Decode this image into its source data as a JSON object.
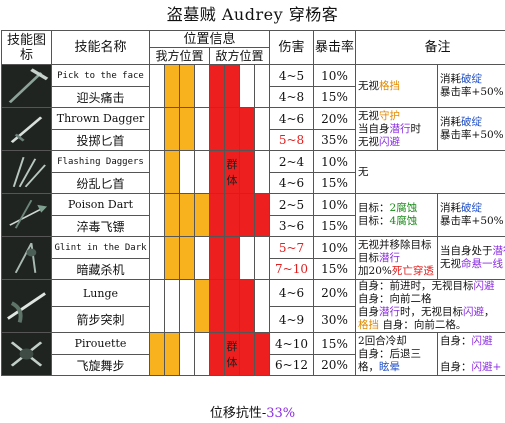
{
  "title": "盗墓贼 Audrey 穿杨客",
  "headers": {
    "icon": "技能图标",
    "skill_name": "技能名称",
    "position_info": "位置信息",
    "our_pos": "我方位置",
    "enemy_pos": "敌方位置",
    "damage": "伤害",
    "crit": "暴击率",
    "remarks": "备注"
  },
  "skills": [
    {
      "en": "Pick to the face",
      "zh": "迎头痛击",
      "icon": "pickaxe-icon",
      "our": [
        0,
        1,
        1,
        0
      ],
      "enemy": [
        1,
        1,
        0,
        0
      ],
      "dmg": [
        "4~5",
        "4~8"
      ],
      "crit": [
        "10%",
        "15%"
      ],
      "note_a": [
        "无视",
        "格挡"
      ],
      "note_b": [
        "消耗",
        "破绽",
        "暴击率+50%"
      ]
    },
    {
      "en": "Thrown Dagger",
      "zh": "投掷匕首",
      "icon": "dagger-icon",
      "our": [
        0,
        1,
        1,
        0
      ],
      "enemy": [
        1,
        1,
        1,
        0
      ],
      "dmg": [
        "4~6",
        "5~8"
      ],
      "crit": [
        "20%",
        "35%"
      ],
      "note_a": [
        "无视",
        "守护",
        "当自身",
        "潜行",
        "时",
        "无视",
        "闪避"
      ],
      "note_b": [
        "消耗",
        "破绽",
        "暴击率+50%"
      ]
    },
    {
      "en": "Flashing Daggers",
      "zh": "纷乱匕首",
      "icon": "daggers-fan-icon",
      "our": [
        0,
        1,
        0,
        0
      ],
      "enemy": [
        1,
        1,
        1,
        0
      ],
      "group": "群体",
      "dmg": [
        "2~4",
        "4~6"
      ],
      "crit": [
        "10%",
        "15%"
      ],
      "note_a": [
        "无"
      ]
    },
    {
      "en": "Poison Dart",
      "zh": "淬毒飞镖",
      "icon": "dart-icon",
      "our": [
        0,
        1,
        1,
        1
      ],
      "enemy": [
        1,
        1,
        1,
        1
      ],
      "dmg": [
        "2~5",
        "3~6"
      ],
      "crit": [
        "10%",
        "15%"
      ],
      "note_a": [
        "目标：",
        "2腐蚀",
        "目标：",
        "4腐蚀"
      ],
      "note_b": [
        "消耗",
        "破绽",
        "暴击率+50%"
      ]
    },
    {
      "en": "Glint in the Dark",
      "zh": "暗藏杀机",
      "icon": "glint-icon",
      "our": [
        0,
        1,
        1,
        0
      ],
      "enemy": [
        1,
        1,
        0,
        0
      ],
      "dmg": [
        "5~7",
        "7~10"
      ],
      "crit": [
        "10%",
        "15%"
      ],
      "note_a": [
        "无视并移除目标",
        "潜行",
        "加20%",
        "死亡穿透"
      ],
      "note_b": [
        "当自身处于",
        "潜行",
        "无视",
        "命悬一线"
      ]
    },
    {
      "en": "Lunge",
      "zh": "箭步突刺",
      "icon": "lunge-icon",
      "our": [
        0,
        0,
        0,
        1
      ],
      "enemy": [
        1,
        1,
        1,
        0
      ],
      "dmg": [
        "4~6",
        "4~9"
      ],
      "crit": [
        "20%",
        "30%"
      ],
      "note_a": [
        "自身：前进",
        "时，无视目标",
        "闪避",
        "自身：",
        "向前二格",
        "自身",
        "潜行",
        "时，无视目标",
        "闪避",
        "，",
        "格挡",
        "自身：",
        "向前二格。"
      ]
    },
    {
      "en": "Pirouette",
      "zh": "飞旋舞步",
      "icon": "pirouette-icon",
      "our": [
        1,
        1,
        0,
        0
      ],
      "enemy": [
        1,
        1,
        1,
        1
      ],
      "group": "群体",
      "dmg": [
        "4~10",
        "6~12"
      ],
      "crit": [
        "15%",
        "20%"
      ],
      "note_a": [
        "2回合冷却",
        "自身：后退三格，",
        "眩晕"
      ],
      "note_b": [
        "自身：",
        "闪避",
        "自身：",
        "闪避+"
      ]
    }
  ],
  "footer": [
    "位移抗性-",
    "33%"
  ]
}
